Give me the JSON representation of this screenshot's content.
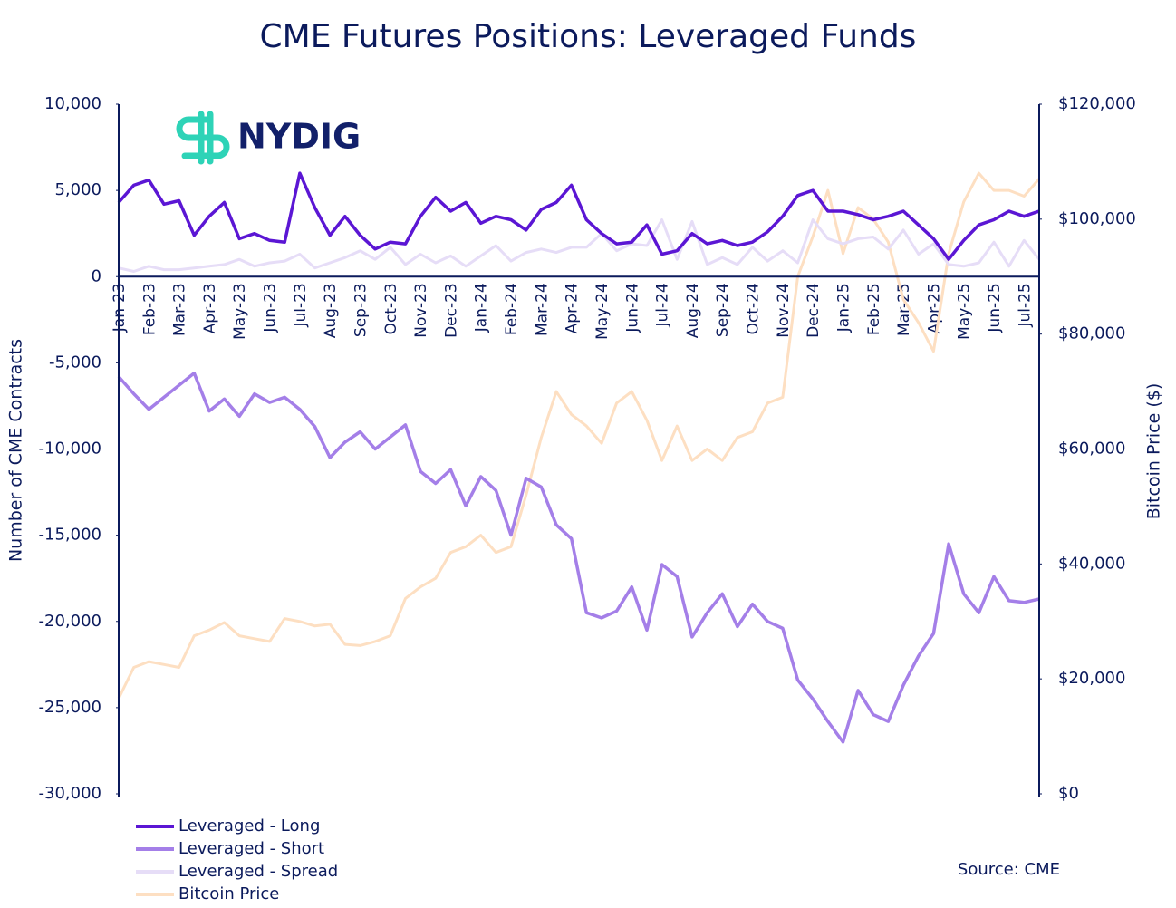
{
  "chart_data": {
    "type": "line",
    "title": "CME Futures Positions: Leveraged Funds",
    "logo": "NYDIG",
    "source": "Source: CME",
    "y_label": "Number of CME Contracts",
    "y2_label": "Bitcoin Price ($)",
    "categories": [
      "Jan-23",
      null,
      "Feb-23",
      null,
      "Mar-23",
      null,
      "Apr-23",
      null,
      "May-23",
      null,
      "Jun-23",
      null,
      "Jul-23",
      null,
      "Aug-23",
      null,
      "Sep-23",
      null,
      "Oct-23",
      null,
      "Nov-23",
      null,
      "Dec-23",
      null,
      "Jan-24",
      null,
      "Feb-24",
      null,
      "Mar-24",
      null,
      "Apr-24",
      null,
      "May-24",
      null,
      "Jun-24",
      null,
      "Jul-24",
      null,
      "Aug-24",
      null,
      "Sep-24",
      null,
      "Oct-24",
      null,
      "Nov-24",
      null,
      "Dec-24",
      null,
      "Jan-25",
      null,
      "Feb-25",
      null,
      "Mar-25",
      null,
      "Apr-25",
      null,
      "May-25",
      null,
      "Jun-25",
      null,
      "Jul-25",
      null
    ],
    "ylim": [
      -30000,
      10000
    ],
    "yticks": [
      {
        "value": -30000,
        "label": "-30,000"
      },
      {
        "value": -25000,
        "label": "-25,000"
      },
      {
        "value": -20000,
        "label": "-20,000"
      },
      {
        "value": -15000,
        "label": "-15,000"
      },
      {
        "value": -10000,
        "label": "-10,000"
      },
      {
        "value": -5000,
        "label": "-5,000"
      },
      0,
      {
        "value": 5000,
        "label": "5,000"
      },
      {
        "value": 10000,
        "label": "10,000"
      }
    ],
    "y2lim": [
      0,
      120000
    ],
    "y2ticks": [
      {
        "value": 0,
        "label": "$0"
      },
      {
        "value": 20000,
        "label": "$20,000"
      },
      {
        "value": 40000,
        "label": "$40,000"
      },
      {
        "value": 60000,
        "label": "$60,000"
      },
      {
        "value": 80000,
        "label": "$80,000"
      },
      {
        "value": 100000,
        "label": "$100,000"
      },
      {
        "value": 120000,
        "label": "$120,000"
      }
    ],
    "grid": false,
    "legend": "bottom-left",
    "series": [
      {
        "name": "Leveraged - Long",
        "color": "#5b16d4",
        "values": [
          4300,
          5300,
          5600,
          4200,
          4400,
          2400,
          3500,
          4300,
          2200,
          2500,
          2100,
          2000,
          6000,
          4000,
          2400,
          3500,
          2400,
          1600,
          2000,
          1900,
          3500,
          4600,
          3800,
          4300,
          3100,
          3500,
          3300,
          2700,
          3900,
          4300,
          5300,
          3300,
          2500,
          1900,
          2000,
          3000,
          1300,
          1500,
          2500,
          1900,
          2100,
          1800,
          2000,
          2600,
          3500,
          4700,
          5000,
          3800,
          3800,
          3600,
          3300,
          3500,
          3800,
          3000,
          2200,
          1000,
          2100,
          3000,
          3300,
          3800,
          3500,
          3800
        ]
      },
      {
        "name": "Leveraged - Short",
        "color": "#a47fe8",
        "values": [
          -5800,
          -6800,
          -7700,
          -7000,
          -6300,
          -5600,
          -7800,
          -7100,
          -8100,
          -6800,
          -7300,
          -7000,
          -7700,
          -8700,
          -10500,
          -9600,
          -9000,
          -10000,
          -9300,
          -8600,
          -11300,
          -12000,
          -11200,
          -13300,
          -11600,
          -12400,
          -15000,
          -11700,
          -12200,
          -14400,
          -15200,
          -19500,
          -19800,
          -19400,
          -18000,
          -20500,
          -16700,
          -17400,
          -20900,
          -19500,
          -18400,
          -20300,
          -19000,
          -20000,
          -20400,
          -23400,
          -24500,
          -25800,
          -27000,
          -24000,
          -25400,
          -25800,
          -23700,
          -22000,
          -20700,
          -15500,
          -18400,
          -19500,
          -17400,
          -18800,
          -18900,
          -18700
        ]
      },
      {
        "name": "Leveraged - Spread",
        "color": "#e6ddf7",
        "values": [
          500,
          300,
          600,
          400,
          400,
          500,
          600,
          700,
          1000,
          600,
          800,
          900,
          1300,
          500,
          800,
          1100,
          1500,
          1000,
          1700,
          700,
          1300,
          800,
          1200,
          600,
          1200,
          1800,
          900,
          1400,
          1600,
          1400,
          1700,
          1700,
          2500,
          1500,
          1900,
          1800,
          3300,
          1000,
          3200,
          700,
          1100,
          700,
          1700,
          900,
          1500,
          800,
          3300,
          2200,
          1900,
          2200,
          2300,
          1600,
          2700,
          1300,
          1900,
          700,
          600,
          800,
          2000,
          600,
          2100,
          1000
        ]
      },
      {
        "name": "Bitcoin Price",
        "color": "#fddfc2",
        "axis": "y2",
        "values": [
          16600,
          22000,
          23000,
          22500,
          22000,
          27500,
          28500,
          29800,
          27500,
          27000,
          26500,
          30500,
          30000,
          29200,
          29500,
          26000,
          25800,
          26500,
          27500,
          34000,
          36000,
          37500,
          42000,
          43000,
          45000,
          42000,
          43000,
          52000,
          62000,
          70000,
          66000,
          64000,
          61000,
          68000,
          70000,
          65000,
          58000,
          64000,
          58000,
          60000,
          58000,
          62000,
          63000,
          68000,
          69000,
          90000,
          97000,
          105000,
          94000,
          102000,
          100000,
          96000,
          86000,
          82000,
          77000,
          94000,
          103000,
          108000,
          105000,
          105000,
          104000,
          107000
        ]
      }
    ]
  }
}
